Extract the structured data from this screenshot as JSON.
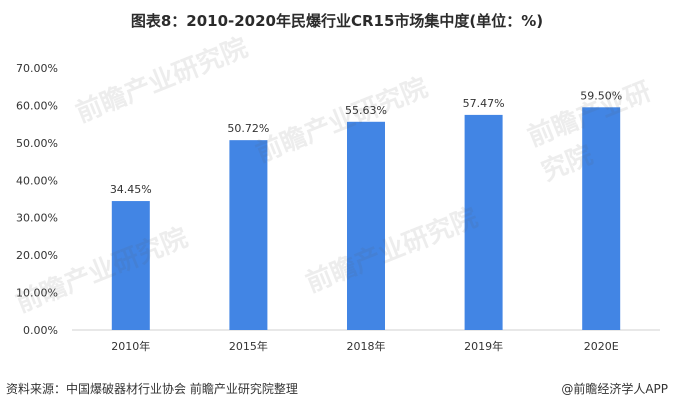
{
  "chart_data": {
    "type": "bar",
    "title": "图表8：2010-2020年民爆行业CR15市场集中度(单位：%)",
    "categories": [
      "2010年",
      "2015年",
      "2018年",
      "2019年",
      "2020E"
    ],
    "values": [
      34.45,
      50.72,
      55.63,
      57.47,
      59.5
    ],
    "data_labels": [
      "34.45%",
      "50.72%",
      "55.63%",
      "57.47%",
      "59.50%"
    ],
    "ylim": [
      0,
      70
    ],
    "y_ticks": [
      "0.00%",
      "10.00%",
      "20.00%",
      "30.00%",
      "40.00%",
      "50.00%",
      "60.00%",
      "70.00%"
    ],
    "grid": false,
    "bar_color": "#4285e4"
  },
  "footer": {
    "source": "资料来源：中国爆破器材行业协会 前瞻产业研究院整理",
    "brand": "@前瞻经济学人APP"
  },
  "watermark": {
    "text": "前瞻产业研究院"
  }
}
